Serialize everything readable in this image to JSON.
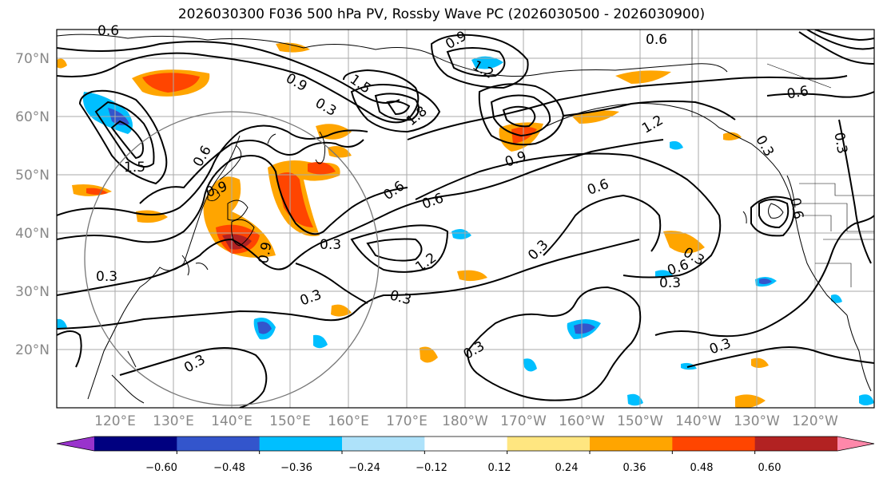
{
  "title": "2026030300 F036 500 hPa PV, Rossby Wave PC (2026030500 - 2026030900)",
  "lat_labels": [
    "70°N",
    "60°N",
    "50°N",
    "40°N",
    "30°N",
    "20°N"
  ],
  "lon_labels": [
    "120°E",
    "130°E",
    "140°E",
    "150°E",
    "160°E",
    "170°E",
    "180°W",
    "170°W",
    "160°W",
    "150°W",
    "140°W",
    "130°W",
    "120°W"
  ],
  "contour_labels": [
    "0.6",
    "0.9",
    "1.2",
    "1.5",
    "1.8",
    "0.9",
    "0.3",
    "1.5",
    "0.6",
    "0.9",
    "1.2",
    "0.6",
    "0.9",
    "0.6",
    "1.2",
    "0.3",
    "0.3",
    "0.3",
    "0.3",
    "0.6",
    "0.3",
    "0.3",
    "0.3",
    "0.6",
    "0.3",
    "0.3",
    "0.3",
    "0.6",
    "0.3",
    "0.9",
    "0.6",
    "0.3",
    "0.6"
  ],
  "colorbar": {
    "ticks": [
      "−0.60",
      "−0.48",
      "−0.36",
      "−0.24",
      "−0.12",
      "0.12",
      "0.24",
      "0.36",
      "0.48",
      "0.60"
    ],
    "colors": [
      "#9933cc",
      "#000080",
      "#3355cc",
      "#00bfff",
      "#aee2fa",
      "#ffffff",
      "#ffe680",
      "#ffa500",
      "#ff4500",
      "#b22222",
      "#ff88aa"
    ]
  },
  "colors": {
    "grid": "#aaaaaa",
    "coast": "#000000",
    "contour": "#000000",
    "label_gray": "#888888"
  }
}
